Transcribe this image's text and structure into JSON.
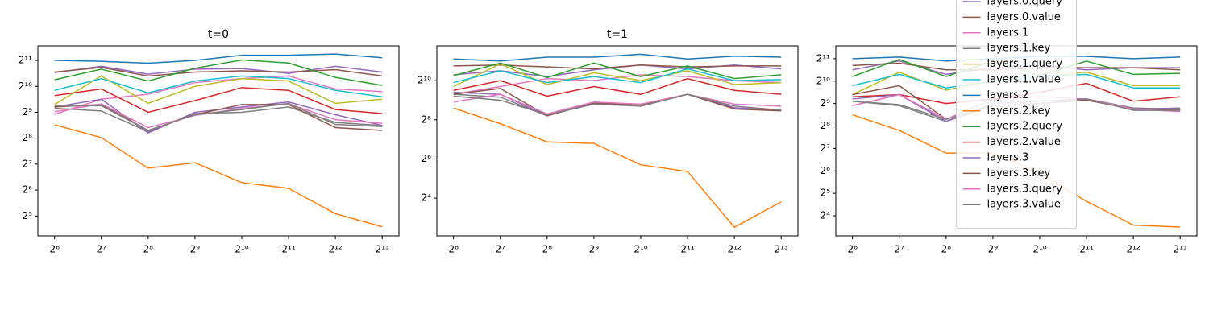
{
  "chart_data": [
    {
      "type": "line",
      "title": "t=0",
      "xscale": "log",
      "yscale": "log",
      "x": [
        64,
        128,
        256,
        512,
        1024,
        2048,
        4096,
        8192
      ],
      "xlim": [
        50,
        10500
      ],
      "ylim": [
        18.8,
        3020
      ],
      "xticks": [
        {
          "value": 64,
          "label": "2⁶"
        },
        {
          "value": 128,
          "label": "2⁷"
        },
        {
          "value": 256,
          "label": "2⁸"
        },
        {
          "value": 512,
          "label": "2⁹"
        },
        {
          "value": 1024,
          "label": "2¹⁰"
        },
        {
          "value": 2048,
          "label": "2¹¹"
        },
        {
          "value": 4096,
          "label": "2¹²"
        },
        {
          "value": 8192,
          "label": "2¹³"
        }
      ],
      "yticks": [
        {
          "value": 32,
          "label": "2⁵"
        },
        {
          "value": 64,
          "label": "2⁶"
        },
        {
          "value": 128,
          "label": "2⁷"
        },
        {
          "value": 256,
          "label": "2⁸"
        },
        {
          "value": 512,
          "label": "2⁹"
        },
        {
          "value": 1024,
          "label": "2¹⁰"
        },
        {
          "value": 2048,
          "label": "2¹¹"
        }
      ],
      "series": [
        {
          "color": "#9467bd",
          "values": [
            1480,
            1750,
            1420,
            1620,
            1650,
            1450,
            1750,
            1500
          ]
        },
        {
          "color": "#8c564b",
          "values": [
            1500,
            1700,
            1350,
            1500,
            1550,
            1500,
            1600,
            1350
          ]
        },
        {
          "color": "#e377c2",
          "values": [
            485,
            725,
            830,
            1130,
            1260,
            1350,
            955,
            890
          ]
        },
        {
          "color": "#7f7f7f",
          "values": [
            570,
            530,
            305,
            495,
            512,
            590,
            390,
            360
          ]
        },
        {
          "color": "#bcbd22",
          "values": [
            630,
            1350,
            650,
            1024,
            1260,
            1180,
            650,
            725
          ]
        },
        {
          "color": "#17becf",
          "values": [
            920,
            1260,
            860,
            1180,
            1350,
            1260,
            920,
            775
          ]
        },
        {
          "color": "#1f77b4",
          "values": [
            2048,
            2000,
            1900,
            2048,
            2350,
            2350,
            2430,
            2200
          ]
        },
        {
          "color": "#ff7f0e",
          "values": [
            367,
            260,
            115,
            133,
            78,
            67,
            34,
            24
          ]
        },
        {
          "color": "#2ca02c",
          "values": [
            1220,
            1620,
            1180,
            1660,
            2070,
            1910,
            1300,
            1050
          ]
        },
        {
          "color": "#d62728",
          "values": [
            800,
            955,
            512,
            700,
            990,
            920,
            550,
            495
          ]
        },
        {
          "color": "#9467bd",
          "values": [
            590,
            725,
            295,
            512,
            590,
            675,
            480,
            360
          ]
        },
        {
          "color": "#8c564b",
          "values": [
            590,
            630,
            315,
            480,
            630,
            630,
            340,
            315
          ]
        },
        {
          "color": "#e377c2",
          "values": [
            520,
            640,
            340,
            470,
            570,
            640,
            420,
            380
          ]
        },
        {
          "color": "#7f7f7f",
          "values": [
            610,
            610,
            315,
            480,
            550,
            650,
            370,
            350
          ]
        }
      ]
    },
    {
      "type": "line",
      "title": "t=1",
      "xscale": "log",
      "yscale": "log",
      "x": [
        64,
        128,
        256,
        512,
        1024,
        2048,
        4096,
        8192
      ],
      "xlim": [
        50,
        10500
      ],
      "ylim": [
        4.2,
        3500
      ],
      "xticks": [
        {
          "value": 64,
          "label": "2⁶"
        },
        {
          "value": 128,
          "label": "2⁷"
        },
        {
          "value": 256,
          "label": "2⁸"
        },
        {
          "value": 512,
          "label": "2⁹"
        },
        {
          "value": 1024,
          "label": "2¹⁰"
        },
        {
          "value": 2048,
          "label": "2¹¹"
        },
        {
          "value": 4096,
          "label": "2¹²"
        },
        {
          "value": 8192,
          "label": "2¹³"
        }
      ],
      "yticks": [
        {
          "value": 16,
          "label": "2⁴"
        },
        {
          "value": 64,
          "label": "2⁶"
        },
        {
          "value": 256,
          "label": "2⁸"
        },
        {
          "value": 1024,
          "label": "2¹⁰"
        }
      ],
      "series": [
        {
          "color": "#9467bd",
          "values": [
            1260,
            1450,
            1180,
            1500,
            1780,
            1550,
            1780,
            1550
          ]
        },
        {
          "color": "#8c564b",
          "values": [
            1720,
            1780,
            1660,
            1550,
            1780,
            1660,
            1720,
            1720
          ]
        },
        {
          "color": "#e377c2",
          "values": [
            630,
            830,
            1100,
            1024,
            1260,
            1180,
            1024,
            955
          ]
        },
        {
          "color": "#7f7f7f",
          "values": [
            630,
            570,
            295,
            480,
            415,
            630,
            390,
            360
          ]
        },
        {
          "color": "#bcbd22",
          "values": [
            830,
            1850,
            890,
            1350,
            1024,
            1450,
            890,
            955
          ]
        },
        {
          "color": "#17becf",
          "values": [
            955,
            1450,
            955,
            1180,
            955,
            1550,
            1024,
            1060
          ]
        },
        {
          "color": "#1f77b4",
          "values": [
            2200,
            2048,
            2350,
            2350,
            2600,
            2200,
            2430,
            2350
          ]
        },
        {
          "color": "#ff7f0e",
          "values": [
            388,
            223,
            117,
            111,
            52,
            41,
            5.7,
            14
          ]
        },
        {
          "color": "#2ca02c",
          "values": [
            1220,
            1910,
            1140,
            1910,
            1180,
            1720,
            1100,
            1260
          ]
        },
        {
          "color": "#d62728",
          "values": [
            725,
            1024,
            590,
            830,
            630,
            1100,
            725,
            630
          ]
        },
        {
          "color": "#9467bd",
          "values": [
            675,
            630,
            295,
            480,
            415,
            630,
            390,
            360
          ]
        },
        {
          "color": "#8c564b",
          "values": [
            630,
            775,
            295,
            460,
            430,
            630,
            375,
            350
          ]
        },
        {
          "color": "#e377c2",
          "values": [
            480,
            630,
            315,
            480,
            445,
            630,
            445,
            415
          ]
        },
        {
          "color": "#7f7f7f",
          "values": [
            590,
            512,
            305,
            445,
            415,
            630,
            415,
            360
          ]
        }
      ]
    },
    {
      "type": "line",
      "xscale": "log",
      "yscale": "log",
      "legend": "upper center",
      "x": [
        64,
        128,
        256,
        512,
        1024,
        2048,
        4096,
        8192
      ],
      "xlim": [
        50,
        10500
      ],
      "ylim": [
        8.6,
        3040
      ],
      "xticks": [
        {
          "value": 64,
          "label": "2⁶"
        },
        {
          "value": 128,
          "label": "2⁷"
        },
        {
          "value": 256,
          "label": "2⁸"
        },
        {
          "value": 512,
          "label": "2⁹"
        },
        {
          "value": 1024,
          "label": "2¹⁰"
        },
        {
          "value": 2048,
          "label": "2¹¹"
        },
        {
          "value": 4096,
          "label": "2¹²"
        },
        {
          "value": 8192,
          "label": "2¹³"
        }
      ],
      "yticks": [
        {
          "value": 16,
          "label": "2⁴"
        },
        {
          "value": 32,
          "label": "2⁵"
        },
        {
          "value": 64,
          "label": "2⁶"
        },
        {
          "value": 128,
          "label": "2⁷"
        },
        {
          "value": 256,
          "label": "2⁸"
        },
        {
          "value": 512,
          "label": "2⁹"
        },
        {
          "value": 1024,
          "label": "2¹⁰"
        },
        {
          "value": 2048,
          "label": "2¹¹"
        }
      ],
      "series": [
        {
          "name": "layers.0.query",
          "color": "#9467bd",
          "values": [
            1450,
            1910,
            1260,
            1550,
            1660,
            1450,
            1550,
            1550
          ]
        },
        {
          "name": "layers.0.value",
          "color": "#8c564b",
          "values": [
            1660,
            1780,
            1450,
            1450,
            1550,
            1550,
            1550,
            1450
          ]
        },
        {
          "name": "layers.1",
          "color": "#e377c2",
          "values": [
            480,
            675,
            315,
            590,
            630,
            590,
            445,
            415
          ]
        },
        {
          "name": "layers.1.key",
          "color": "#7f7f7f",
          "values": [
            550,
            480,
            295,
            480,
            512,
            590,
            445,
            430
          ]
        },
        {
          "name": "layers.1.query",
          "color": "#bcbd22",
          "values": [
            675,
            1350,
            775,
            1024,
            1180,
            1350,
            890,
            890
          ]
        },
        {
          "name": "layers.1.value",
          "color": "#17becf",
          "values": [
            890,
            1260,
            830,
            1024,
            1180,
            1260,
            830,
            830
          ]
        },
        {
          "name": "layers.2",
          "color": "#1f77b4",
          "values": [
            2048,
            2150,
            1910,
            2048,
            2200,
            2200,
            2048,
            2150
          ]
        },
        {
          "name": "layers.2.key",
          "color": "#ff7f0e",
          "values": [
            362,
            223,
            111,
            111,
            60,
            25,
            12,
            11.3
          ]
        },
        {
          "name": "layers.2.query",
          "color": "#2ca02c",
          "values": [
            1180,
            2000,
            1180,
            1900,
            1220,
            1900,
            1260,
            1300
          ]
        },
        {
          "name": "layers.2.value",
          "color": "#d62728",
          "values": [
            630,
            675,
            512,
            590,
            725,
            955,
            550,
            630
          ]
        },
        {
          "name": "layers.3",
          "color": "#9467bd",
          "values": [
            590,
            675,
            295,
            512,
            550,
            590,
            430,
            445
          ]
        },
        {
          "name": "layers.3.key",
          "color": "#8c564b",
          "values": [
            675,
            890,
            315,
            480,
            512,
            570,
            430,
            415
          ]
        },
        {
          "name": "layers.3.query",
          "color": "#e377c2",
          "values": [
            480,
            675,
            315,
            480,
            512,
            590,
            430,
            400
          ]
        },
        {
          "name": "layers.3.value",
          "color": "#7f7f7f",
          "values": [
            550,
            495,
            315,
            480,
            512,
            590,
            415,
            415
          ]
        }
      ]
    }
  ]
}
